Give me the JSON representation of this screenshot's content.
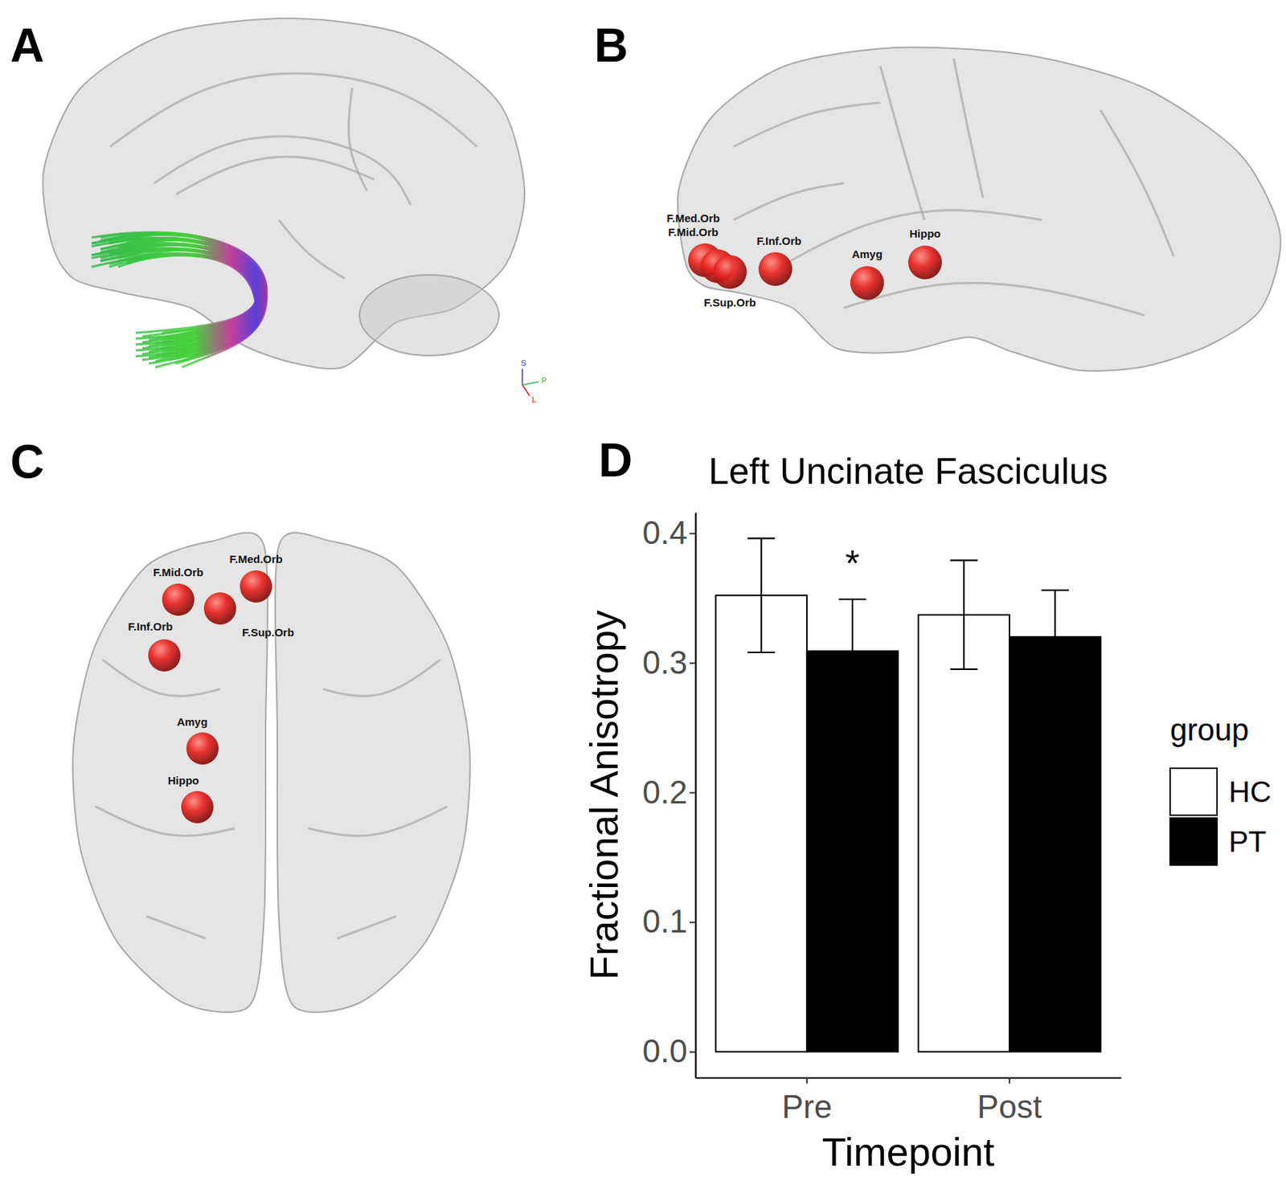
{
  "panels": {
    "labels": [
      "A",
      "B",
      "C",
      "D"
    ],
    "axis_letters": [
      "S",
      "P",
      "L"
    ],
    "brain_nodes": [
      "F.Med.Orb",
      "F.Mid.Orb",
      "F.Sup.Orb",
      "F.Inf.Orb",
      "Amyg",
      "Hippo"
    ]
  },
  "chart_data": {
    "type": "bar",
    "title": "Left Uncinate Fasciculus",
    "x_label": "Timepoint",
    "y_label": "Fractional Anisotropy",
    "categories": [
      "Pre",
      "Post"
    ],
    "series": [
      {
        "name": "HC",
        "color": "#ffffff",
        "values": [
          0.352,
          0.337
        ],
        "errors": [
          0.044,
          0.042
        ]
      },
      {
        "name": "PT",
        "color": "#000000",
        "values": [
          0.309,
          0.32
        ],
        "errors": [
          0.04,
          0.036
        ]
      }
    ],
    "ylim": [
      -0.02,
      0.416
    ],
    "yticks": [
      {
        "value": 0,
        "label": "0.0"
      },
      0.1,
      0.2,
      0.3,
      0.4
    ],
    "legend": "right",
    "legend_title": "group",
    "annotations": [
      {
        "text": "*",
        "category": 0,
        "series": 1,
        "y": 0.383
      }
    ]
  }
}
